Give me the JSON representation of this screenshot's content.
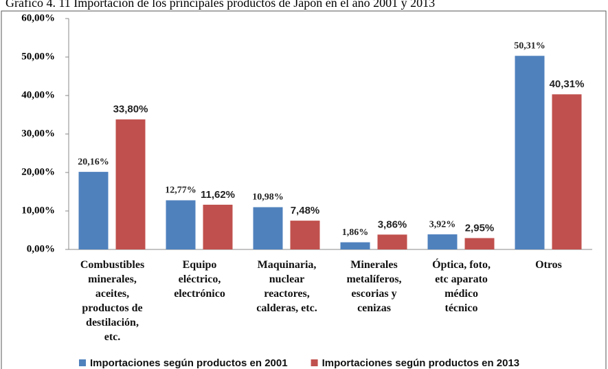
{
  "chart_data": {
    "type": "bar",
    "title": "Gráfico 4. 11 Importación de los principales productos de Japón en el año 2001 y 2013",
    "categories": [
      "Combustibles\nminerales,\naceites,\nproductos de\ndestilación,\netc.",
      "Equipo\neléctrico,\nelectrónico",
      "Maquinaria,\nnuclear\nreactores,\ncalderas, etc.",
      "Minerales\nmetalíferos,\nescorias y\ncenizas",
      "Óptica, foto,\netc aparato\nmédico\ntécnico",
      "Otros"
    ],
    "series": [
      {
        "name": "Importaciones según productos en 2001",
        "color": "#4f81bd",
        "values": [
          20.16,
          12.77,
          10.98,
          1.86,
          3.92,
          50.31
        ],
        "value_labels": [
          "20,16%",
          "12,77%",
          "10,98%",
          "1,86%",
          "3,92%",
          "50,31%"
        ]
      },
      {
        "name": "Importaciones según productos en 2013",
        "color": "#c0504d",
        "values": [
          33.8,
          11.62,
          7.48,
          3.86,
          2.95,
          40.31
        ],
        "value_labels": [
          "33,80%",
          "11,62%",
          "7,48%",
          "3,86%",
          "2,95%",
          "40,31%"
        ]
      }
    ],
    "ylim": [
      0,
      60
    ],
    "yticks": [
      {
        "value": 0,
        "label": "0,00%"
      },
      {
        "value": 10,
        "label": "10,00%"
      },
      {
        "value": 20,
        "label": "20,00%"
      },
      {
        "value": 30,
        "label": "30,00%"
      },
      {
        "value": 40,
        "label": "40,00%"
      },
      {
        "value": 50,
        "label": "50,00%"
      },
      {
        "value": 60,
        "label": "60,00%"
      }
    ],
    "legend": "bottom"
  }
}
